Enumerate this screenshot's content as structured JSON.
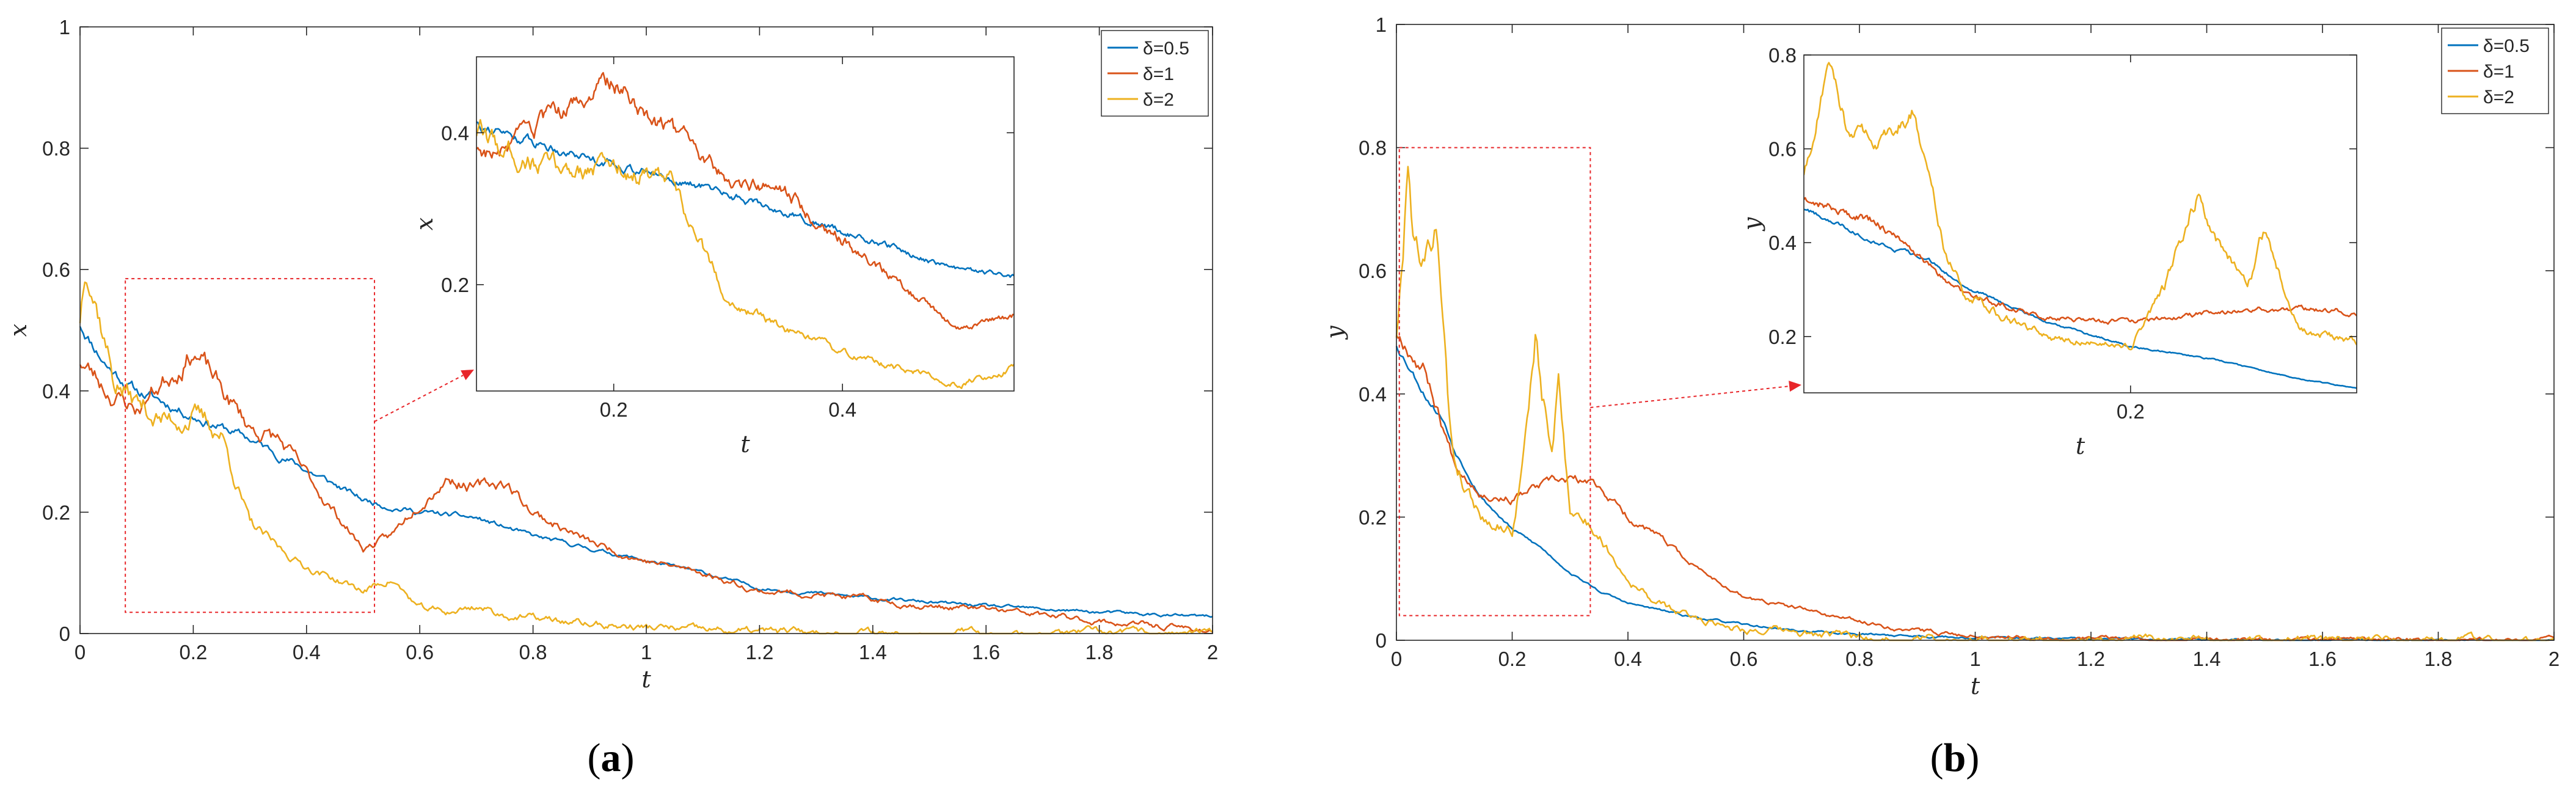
{
  "figure": {
    "colors": {
      "s05": "#0072BD",
      "s1": "#D95319",
      "s2": "#EDB120",
      "zoom": "#E8262A",
      "axis": "#262626"
    }
  },
  "chart_data": [
    {
      "id": "a",
      "type": "line",
      "caption_prefix": "(",
      "caption_letter": "a",
      "caption_suffix": ")",
      "xlabel": "t",
      "ylabel": "x",
      "xlim": [
        0,
        2
      ],
      "ylim": [
        0,
        1
      ],
      "xticks": [
        "0",
        "0.2",
        "0.4",
        "0.6",
        "0.8",
        "1",
        "1.2",
        "1.4",
        "1.6",
        "1.8",
        "2"
      ],
      "yticks": [
        "0",
        "0.2",
        "0.4",
        "0.6",
        "0.8",
        "1"
      ],
      "legend": [
        "δ=0.5",
        "δ=1",
        "δ=2"
      ],
      "legend_location": "top-right",
      "zoom_box": {
        "x": [
          0.08,
          0.52
        ],
        "y": [
          0.035,
          0.585
        ]
      },
      "series": [
        {
          "name": "δ=0.5",
          "noise": 0.012,
          "seed": 11,
          "x": [
            0,
            0.05,
            0.1,
            0.2,
            0.3,
            0.4,
            0.5,
            0.6,
            0.7,
            0.8,
            0.9,
            1.0,
            1.1,
            1.2,
            1.4,
            1.6,
            1.8,
            2.0
          ],
          "y": [
            0.51,
            0.44,
            0.4,
            0.36,
            0.32,
            0.27,
            0.22,
            0.2,
            0.19,
            0.16,
            0.14,
            0.12,
            0.1,
            0.075,
            0.058,
            0.045,
            0.035,
            0.027
          ]
        },
        {
          "name": "δ=1",
          "noise": 0.022,
          "seed": 23,
          "x": [
            0,
            0.05,
            0.1,
            0.15,
            0.2,
            0.25,
            0.3,
            0.35,
            0.4,
            0.45,
            0.5,
            0.55,
            0.6,
            0.65,
            0.7,
            0.75,
            0.8,
            0.9,
            1.0,
            1.1,
            1.2,
            1.3,
            1.4,
            1.5,
            1.6,
            1.8,
            2.0
          ],
          "y": [
            0.45,
            0.4,
            0.37,
            0.42,
            0.47,
            0.4,
            0.34,
            0.32,
            0.26,
            0.2,
            0.14,
            0.16,
            0.22,
            0.26,
            0.24,
            0.25,
            0.2,
            0.15,
            0.12,
            0.1,
            0.07,
            0.065,
            0.055,
            0.045,
            0.04,
            0.02,
            0.005
          ]
        },
        {
          "name": "δ=2",
          "noise": 0.028,
          "seed": 37,
          "x": [
            0,
            0.01,
            0.03,
            0.06,
            0.1,
            0.15,
            0.2,
            0.25,
            0.3,
            0.35,
            0.4,
            0.45,
            0.5,
            0.55,
            0.6,
            0.65,
            0.7,
            0.75,
            0.8,
            0.9,
            1.0,
            1.1,
            1.2,
            1.5,
            2.0
          ],
          "y": [
            0.52,
            0.62,
            0.55,
            0.42,
            0.38,
            0.35,
            0.36,
            0.33,
            0.18,
            0.14,
            0.11,
            0.09,
            0.07,
            0.09,
            0.04,
            0.035,
            0.045,
            0.03,
            0.025,
            0.015,
            0.01,
            0.005,
            0.003,
            0.001,
            0.0
          ]
        }
      ],
      "inset": {
        "xlabel": "t",
        "ylabel": "x",
        "xlim": [
          0.08,
          0.55
        ],
        "ylim": [
          0.06,
          0.5
        ],
        "xticks": [
          0.2,
          0.4
        ],
        "yticks": [
          0.2,
          0.4
        ],
        "xtick_labels": [
          "0.2",
          "0.4"
        ],
        "ytick_labels": [
          "0.2",
          "0.4"
        ],
        "noise_scale": 0.7
      }
    },
    {
      "id": "b",
      "type": "line",
      "caption_prefix": "(",
      "caption_letter": "b",
      "caption_suffix": ")",
      "xlabel": "t",
      "ylabel": "y",
      "xlim": [
        0,
        2
      ],
      "ylim": [
        0,
        1
      ],
      "xticks": [
        "0",
        "0.2",
        "0.4",
        "0.6",
        "0.8",
        "1",
        "1.2",
        "1.4",
        "1.6",
        "1.8",
        "2"
      ],
      "yticks": [
        "0",
        "0.2",
        "0.4",
        "0.6",
        "0.8",
        "1"
      ],
      "legend": [
        "δ=0.5",
        "δ=1",
        "δ=2"
      ],
      "legend_location": "top-right",
      "zoom_box": {
        "x": [
          0.005,
          0.335
        ],
        "y": [
          0.04,
          0.8
        ]
      },
      "series": [
        {
          "name": "δ=0.5",
          "noise": 0.008,
          "seed": 53,
          "x": [
            0,
            0.02,
            0.05,
            0.08,
            0.1,
            0.15,
            0.2,
            0.25,
            0.3,
            0.35,
            0.4,
            0.5,
            0.6,
            0.7,
            0.8,
            1.0,
            1.2,
            1.6,
            2.0
          ],
          "y": [
            0.48,
            0.45,
            0.4,
            0.36,
            0.31,
            0.23,
            0.18,
            0.15,
            0.11,
            0.08,
            0.06,
            0.04,
            0.025,
            0.015,
            0.01,
            0.004,
            0.002,
            0.001,
            0.0
          ]
        },
        {
          "name": "δ=1",
          "noise": 0.016,
          "seed": 67,
          "x": [
            0,
            0.02,
            0.05,
            0.08,
            0.1,
            0.15,
            0.2,
            0.25,
            0.3,
            0.35,
            0.4,
            0.45,
            0.5,
            0.55,
            0.6,
            0.7,
            0.8,
            0.9,
            1.0,
            1.2,
            1.5,
            2.0
          ],
          "y": [
            0.5,
            0.48,
            0.44,
            0.35,
            0.29,
            0.24,
            0.23,
            0.25,
            0.26,
            0.25,
            0.2,
            0.17,
            0.13,
            0.1,
            0.07,
            0.05,
            0.03,
            0.015,
            0.008,
            0.003,
            0.001,
            0.0
          ]
        },
        {
          "name": "δ=2",
          "noise": 0.03,
          "seed": 79,
          "x": [
            0,
            0.01,
            0.02,
            0.03,
            0.05,
            0.07,
            0.08,
            0.09,
            0.1,
            0.12,
            0.15,
            0.2,
            0.22,
            0.24,
            0.25,
            0.27,
            0.28,
            0.3,
            0.32,
            0.35,
            0.4,
            0.45,
            0.5,
            0.6,
            0.7,
            0.8,
            1.0,
            2.0
          ],
          "y": [
            0.5,
            0.6,
            0.79,
            0.65,
            0.62,
            0.68,
            0.55,
            0.38,
            0.3,
            0.25,
            0.2,
            0.18,
            0.3,
            0.5,
            0.4,
            0.3,
            0.42,
            0.22,
            0.2,
            0.17,
            0.1,
            0.06,
            0.04,
            0.02,
            0.01,
            0.005,
            0.001,
            0.0
          ]
        }
      ],
      "inset": {
        "xlabel": "t",
        "ylabel": "y",
        "xlim": [
          0.005,
          0.335
        ],
        "ylim": [
          0.08,
          0.8
        ],
        "xticks": [
          0.2
        ],
        "yticks": [
          0.2,
          0.4,
          0.6,
          0.8
        ],
        "xtick_labels": [
          "0.2"
        ],
        "ytick_labels": [
          "0.2",
          "0.4",
          "0.6",
          "0.8"
        ],
        "noise_scale": 0.7
      }
    }
  ]
}
